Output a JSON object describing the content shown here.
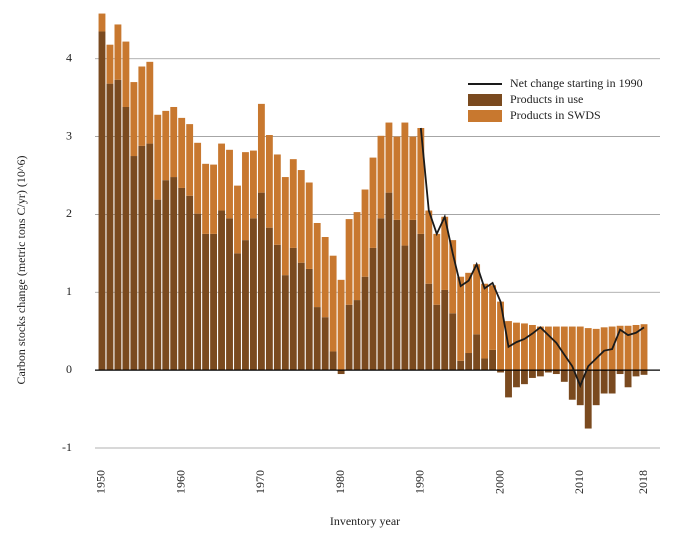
{
  "chart_data": {
    "type": "bar",
    "stacked": true,
    "xlabel": "Inventory year",
    "ylabel": "Carbon stocks change (metric tons C/yr) (10^6)",
    "x": [
      1950,
      1951,
      1952,
      1953,
      1954,
      1955,
      1956,
      1957,
      1958,
      1959,
      1960,
      1961,
      1962,
      1963,
      1964,
      1965,
      1966,
      1967,
      1968,
      1969,
      1970,
      1971,
      1972,
      1973,
      1974,
      1975,
      1976,
      1977,
      1978,
      1979,
      1980,
      1981,
      1982,
      1983,
      1984,
      1985,
      1986,
      1987,
      1988,
      1989,
      1990,
      1991,
      1992,
      1993,
      1994,
      1995,
      1996,
      1997,
      1998,
      1999,
      2000,
      2001,
      2002,
      2003,
      2004,
      2005,
      2006,
      2007,
      2008,
      2009,
      2010,
      2011,
      2012,
      2013,
      2014,
      2015,
      2016,
      2017,
      2018
    ],
    "series": [
      {
        "name": "Net change starting in 1990",
        "type": "line",
        "color": "#1a1a1a",
        "values": [
          null,
          null,
          null,
          null,
          null,
          null,
          null,
          null,
          null,
          null,
          null,
          null,
          null,
          null,
          null,
          null,
          null,
          null,
          null,
          null,
          null,
          null,
          null,
          null,
          null,
          null,
          null,
          null,
          null,
          null,
          null,
          null,
          null,
          null,
          null,
          null,
          null,
          null,
          null,
          null,
          3.11,
          2.05,
          1.75,
          1.97,
          1.5,
          1.08,
          1.15,
          1.36,
          1.05,
          1.12,
          0.88,
          0.3,
          0.36,
          0.4,
          0.47,
          0.55,
          0.45,
          0.35,
          0.2,
          0.05,
          -0.2,
          0.05,
          0.15,
          0.25,
          0.27,
          0.52,
          0.45,
          0.48,
          0.55
        ]
      },
      {
        "name": "Products in use",
        "type": "bar",
        "color": "#7a4a1f",
        "values": [
          4.35,
          3.68,
          3.73,
          3.38,
          2.75,
          2.88,
          2.91,
          2.19,
          2.44,
          2.48,
          2.34,
          2.24,
          2.01,
          1.75,
          1.75,
          2.05,
          1.95,
          1.5,
          1.67,
          1.95,
          2.28,
          1.83,
          1.61,
          1.22,
          1.57,
          1.38,
          1.3,
          0.81,
          0.68,
          0.24,
          -0.05,
          0.84,
          0.9,
          1.2,
          1.57,
          1.95,
          2.28,
          1.93,
          1.6,
          1.93,
          1.75,
          1.11,
          0.84,
          1.03,
          0.73,
          0.12,
          0.22,
          0.46,
          0.15,
          0.26,
          -0.03,
          -0.35,
          -0.22,
          -0.18,
          -0.1,
          -0.08,
          -0.03,
          -0.05,
          -0.15,
          -0.38,
          -0.45,
          -0.75,
          -0.45,
          -0.3,
          -0.3,
          -0.05,
          -0.22,
          -0.08,
          -0.06
        ]
      },
      {
        "name": "Products in SWDS",
        "type": "bar",
        "color": "#c8782f",
        "values": [
          0.23,
          0.5,
          0.71,
          0.84,
          0.95,
          1.02,
          1.05,
          1.09,
          0.89,
          0.9,
          0.9,
          0.92,
          0.91,
          0.9,
          0.89,
          0.86,
          0.88,
          0.87,
          1.13,
          0.87,
          1.14,
          1.19,
          1.16,
          1.26,
          1.14,
          1.19,
          1.11,
          1.08,
          1.03,
          1.23,
          1.16,
          1.1,
          1.13,
          1.12,
          1.16,
          1.06,
          0.9,
          1.07,
          1.58,
          1.07,
          1.36,
          0.94,
          0.91,
          0.94,
          0.94,
          1.08,
          1.03,
          0.9,
          0.96,
          0.83,
          0.88,
          0.63,
          0.61,
          0.6,
          0.58,
          0.56,
          0.56,
          0.56,
          0.56,
          0.56,
          0.56,
          0.54,
          0.53,
          0.55,
          0.56,
          0.57,
          0.57,
          0.58,
          0.59
        ]
      }
    ],
    "xlim": [
      1949.5,
      2018.5
    ],
    "xticks": [
      1950,
      1960,
      1970,
      1980,
      1990,
      2000,
      2010,
      2018
    ],
    "ylim": [
      -1,
      4.6
    ],
    "yticks": [
      -1,
      0,
      1,
      2,
      3,
      4
    ],
    "grid": true,
    "legend": "upper right"
  }
}
